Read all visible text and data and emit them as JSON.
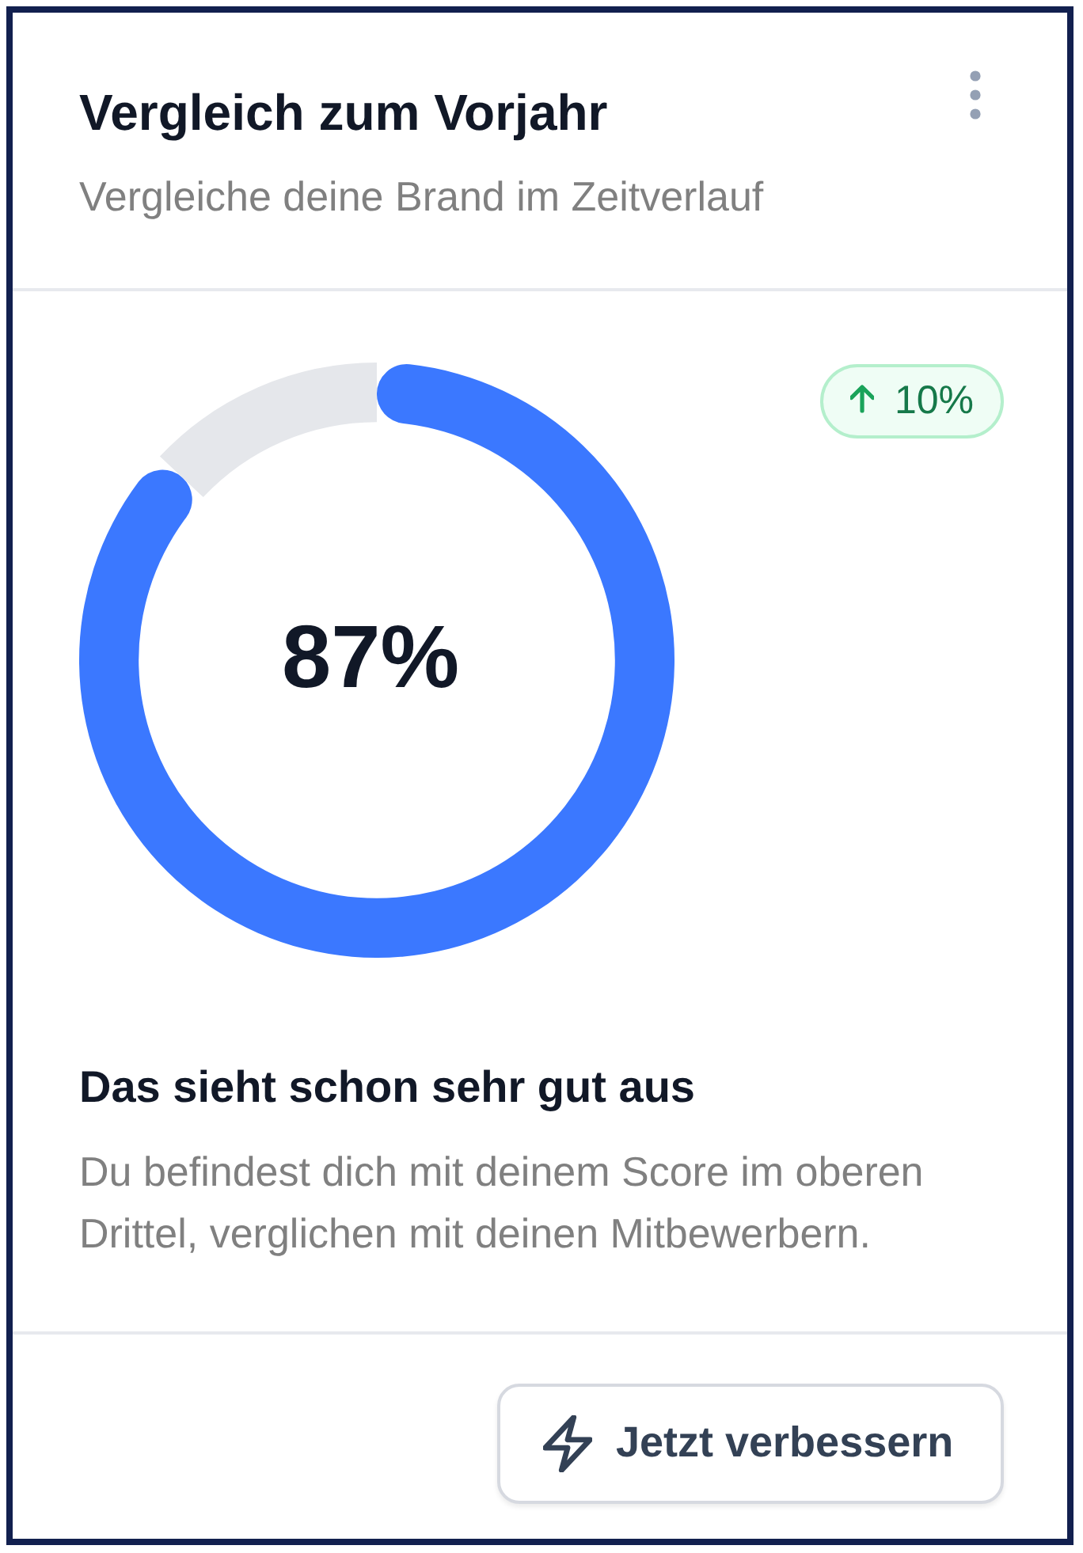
{
  "chart_data": {
    "type": "donut",
    "title": "Vergleich zum Vorjahr",
    "subtitle": "Vergleiche deine Brand im Zeitverlauf",
    "categories": [
      null,
      null
    ],
    "values": [
      87,
      13
    ],
    "colors": [
      "#3b78ff",
      "#e5e7eb"
    ],
    "annotations": [
      "87%",
      "10%",
      "Das sieht schon sehr gut aus",
      "Du befindest dich mit deinem Score im oberen Drittel, verglichen mit deinen Mitbewerbern.",
      "Jetzt verbessern"
    ],
    "legend": false
  }
}
